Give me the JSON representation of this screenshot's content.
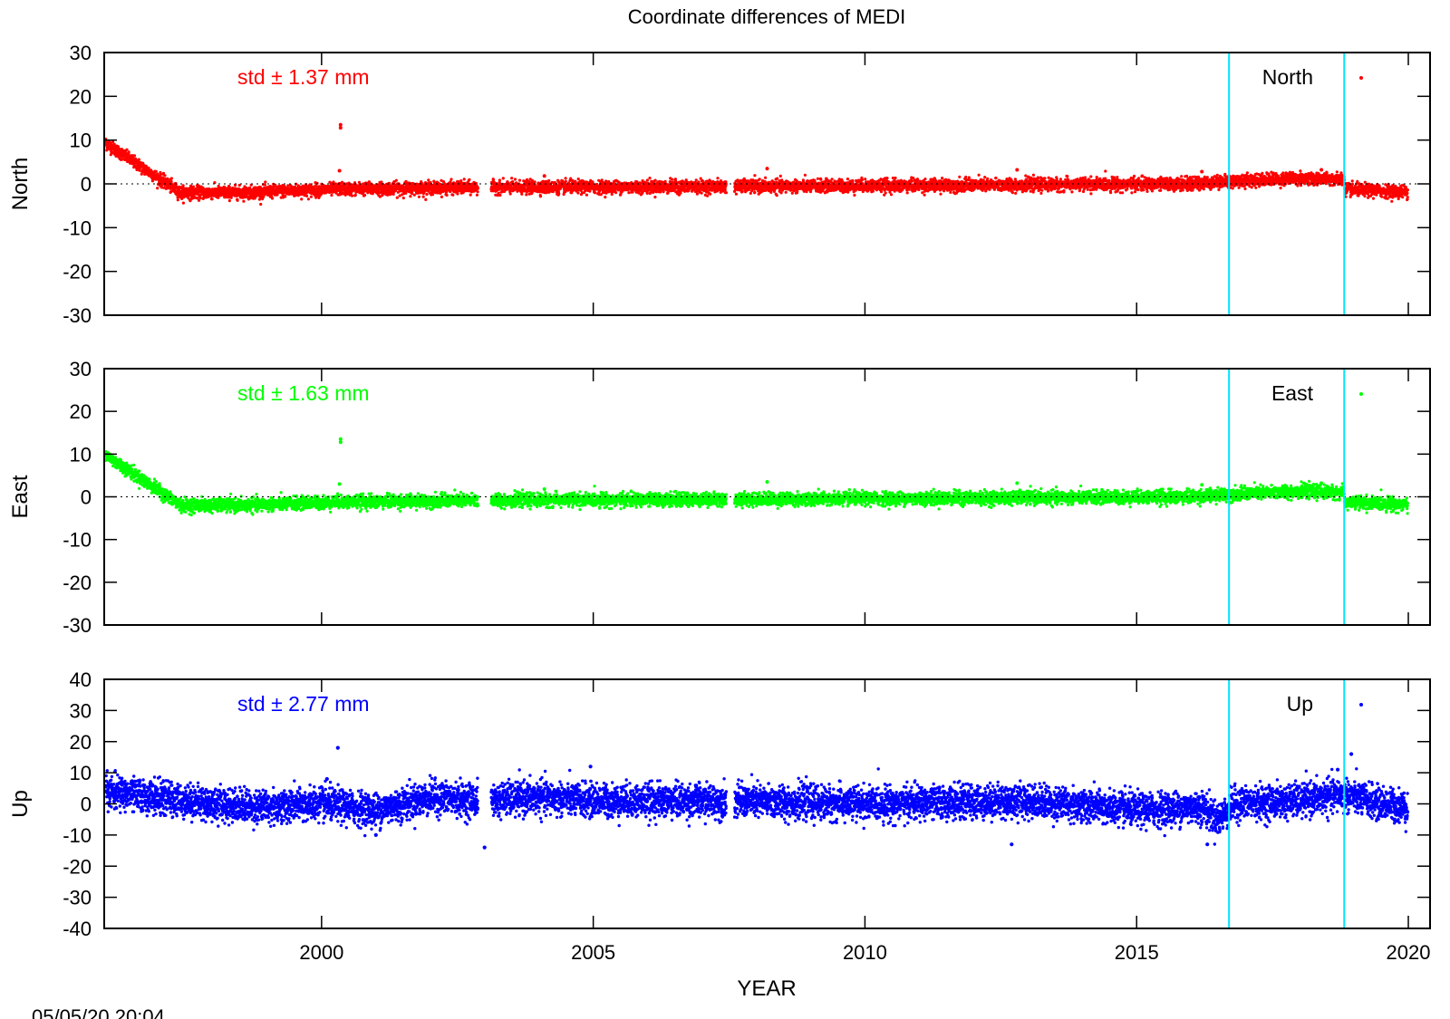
{
  "chart_data": {
    "type": "scatter",
    "title": "Coordinate differences of MEDI",
    "xlabel": "YEAR",
    "timestamp": "05/05/20 20:04",
    "xlim": [
      1996.0,
      2020.4
    ],
    "x_ticks": [
      2000,
      2005,
      2010,
      2015,
      2020
    ],
    "x_tick_labels": [
      "2000",
      "2005",
      "2010",
      "2015",
      "2020"
    ],
    "vertical_markers": [
      2016.7,
      2018.82
    ],
    "marker_color": "#00e5ff",
    "gaps": [
      [
        2002.88,
        2003.12
      ],
      [
        2007.45,
        2007.6
      ]
    ],
    "panels": [
      {
        "ylabel": "North",
        "series_name": "North",
        "color": "#ff0000",
        "std_label": "std ± 1.37 mm",
        "ylim": [
          -30,
          30
        ],
        "y_ticks": [
          30,
          20,
          10,
          0,
          -10,
          -20,
          -30
        ],
        "y_tick_labels": [
          "30",
          "20",
          "10",
          "0",
          "-10",
          "-20",
          "-30"
        ],
        "zero_line": true,
        "noise": 0.7,
        "trend": [
          [
            1996.0,
            9.5
          ],
          [
            1997.4,
            -2.0
          ],
          [
            1998.5,
            -2.0
          ],
          [
            2000.3,
            -1.2
          ],
          [
            2003.0,
            -0.8
          ],
          [
            2007.5,
            -0.6
          ],
          [
            2016.0,
            0.0
          ],
          [
            2016.7,
            0.6
          ],
          [
            2018.0,
            1.3
          ],
          [
            2018.82,
            1.0
          ],
          [
            2018.83,
            -1.3
          ],
          [
            2020.0,
            -1.8
          ]
        ],
        "outliers": [
          [
            2000.35,
            13.5
          ],
          [
            2000.35,
            12.8
          ],
          [
            2000.33,
            3.0
          ],
          [
            2008.2,
            3.5
          ],
          [
            2012.8,
            3.2
          ],
          [
            2004.1,
            1.8
          ],
          [
            2016.2,
            2.8
          ],
          [
            2018.4,
            3.2
          ]
        ]
      },
      {
        "ylabel": "East",
        "series_name": "East",
        "color": "#00ff00",
        "std_label": "std ± 1.63 mm",
        "ylim": [
          -30,
          30
        ],
        "y_ticks": [
          30,
          20,
          10,
          0,
          -10,
          -20,
          -30
        ],
        "y_tick_labels": [
          "30",
          "20",
          "10",
          "0",
          "-10",
          "-20",
          "-30"
        ],
        "zero_line": true,
        "noise": 0.75,
        "trend": [
          [
            1996.0,
            10.0
          ],
          [
            1997.4,
            -2.0
          ],
          [
            1998.5,
            -2.0
          ],
          [
            2000.3,
            -1.2
          ],
          [
            2003.0,
            -0.8
          ],
          [
            2007.5,
            -0.6
          ],
          [
            2016.0,
            0.0
          ],
          [
            2016.7,
            0.6
          ],
          [
            2018.0,
            1.3
          ],
          [
            2018.82,
            1.0
          ],
          [
            2018.83,
            -1.3
          ],
          [
            2020.0,
            -1.8
          ]
        ],
        "outliers": [
          [
            2000.35,
            13.5
          ],
          [
            2000.35,
            12.8
          ],
          [
            2000.33,
            3.0
          ],
          [
            2008.2,
            3.5
          ],
          [
            2012.8,
            3.2
          ],
          [
            2004.1,
            1.8
          ],
          [
            2016.2,
            2.8
          ],
          [
            2018.4,
            3.2
          ]
        ]
      },
      {
        "ylabel": "Up",
        "series_name": "Up",
        "color": "#0000ff",
        "std_label": "std ± 2.77 mm",
        "ylim": [
          -40,
          40
        ],
        "y_ticks": [
          40,
          30,
          20,
          10,
          0,
          -10,
          -20,
          -30,
          -40
        ],
        "y_tick_labels": [
          "40",
          "30",
          "20",
          "10",
          "0",
          "-10",
          "-20",
          "-30",
          "-40"
        ],
        "zero_line": false,
        "noise": 2.6,
        "trend": [
          [
            1996.0,
            4.0
          ],
          [
            1997.0,
            2.0
          ],
          [
            1998.0,
            0.0
          ],
          [
            1999.0,
            -1.0
          ],
          [
            2000.0,
            0.0
          ],
          [
            2001.0,
            -2.0
          ],
          [
            2002.0,
            2.0
          ],
          [
            2003.0,
            1.0
          ],
          [
            2004.0,
            2.0
          ],
          [
            2005.0,
            1.0
          ],
          [
            2007.4,
            1.0
          ],
          [
            2010.0,
            0.0
          ],
          [
            2013.0,
            1.0
          ],
          [
            2015.0,
            -2.0
          ],
          [
            2016.2,
            -1.0
          ],
          [
            2016.5,
            -5.0
          ],
          [
            2016.8,
            0.0
          ],
          [
            2018.0,
            1.0
          ],
          [
            2018.8,
            3.0
          ],
          [
            2019.5,
            0.0
          ],
          [
            2020.0,
            -1.0
          ]
        ],
        "outliers": [
          [
            2000.3,
            18.0
          ],
          [
            2000.1,
            8.0
          ],
          [
            2004.95,
            12.0
          ],
          [
            2003.0,
            -14.0
          ],
          [
            2012.7,
            -13.0
          ],
          [
            2016.3,
            -13.0
          ],
          [
            2018.95,
            16.0
          ],
          [
            2001.0,
            -10.0
          ],
          [
            2018.7,
            11.0
          ]
        ]
      }
    ]
  }
}
